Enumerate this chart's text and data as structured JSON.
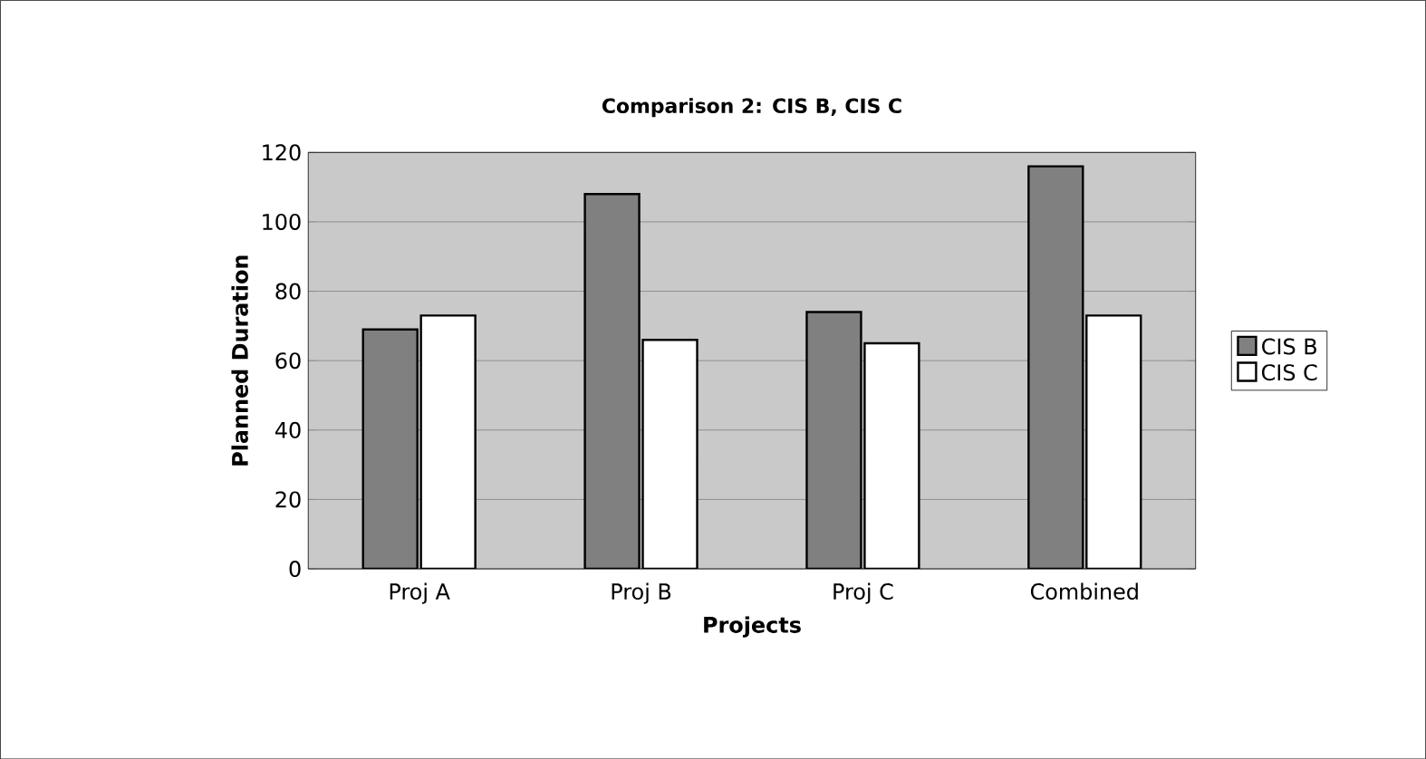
{
  "chart_data": {
    "type": "bar",
    "title": "Comparison 2: CIS B, CIS C",
    "xlabel": "Projects",
    "ylabel": "Planned Duration",
    "categories": [
      "Proj A",
      "Proj B",
      "Proj C",
      "Combined"
    ],
    "series": [
      {
        "name": "CIS B",
        "color": "#808080",
        "values": [
          69,
          108,
          74,
          116
        ]
      },
      {
        "name": "CIS C",
        "color": "#ffffff",
        "values": [
          73,
          66,
          65,
          73
        ]
      }
    ],
    "ylim": [
      0,
      120
    ],
    "yticks": [
      0,
      20,
      40,
      60,
      80,
      100,
      120
    ],
    "grid": "y",
    "legend": "right"
  }
}
